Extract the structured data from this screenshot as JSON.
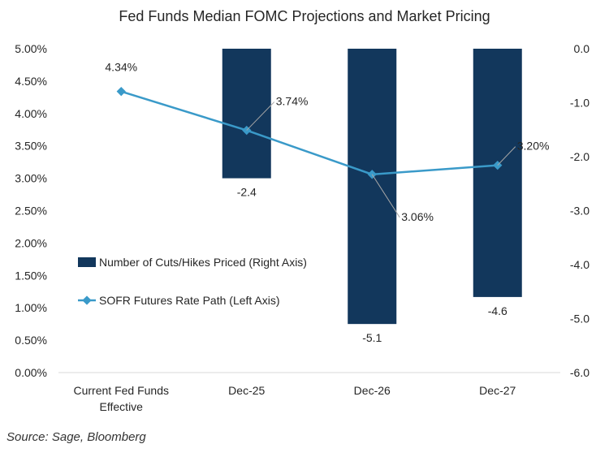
{
  "chart_data": {
    "type": "bar",
    "title": "Fed Funds Median FOMC Projections and Market Pricing",
    "categories": [
      [
        "Current Fed Funds",
        "Effective"
      ],
      [
        "Dec-25"
      ],
      [
        "Dec-26"
      ],
      [
        "Dec-27"
      ]
    ],
    "left_axis": {
      "ylim": [
        0,
        5
      ],
      "ticks": [
        "0.00%",
        "0.50%",
        "1.00%",
        "1.50%",
        "2.00%",
        "2.50%",
        "3.00%",
        "3.50%",
        "4.00%",
        "4.50%",
        "5.00%"
      ]
    },
    "right_axis": {
      "ylim": [
        -6,
        0
      ],
      "ticks": [
        "0.0",
        "-1.0",
        "-2.0",
        "-3.0",
        "-4.0",
        "-5.0",
        "-6.0"
      ]
    },
    "series": [
      {
        "name": "Number of Cuts/Hikes Priced (Right Axis)",
        "type": "bar",
        "axis": "right",
        "values": [
          null,
          -2.4,
          -5.1,
          -4.6
        ],
        "labels": [
          "",
          "-2.4",
          "-5.1",
          "-4.6"
        ],
        "color": "#12375C"
      },
      {
        "name": "SOFR Futures Rate Path (Left Axis)",
        "type": "line",
        "axis": "left",
        "values": [
          4.34,
          3.74,
          3.06,
          3.2
        ],
        "labels": [
          "4.34%",
          "3.74%",
          "3.06%",
          "3.20%"
        ],
        "color": "#3A9AC9"
      }
    ],
    "legend": "center-left",
    "grid": false
  },
  "source": "Source: Sage, Bloomberg"
}
